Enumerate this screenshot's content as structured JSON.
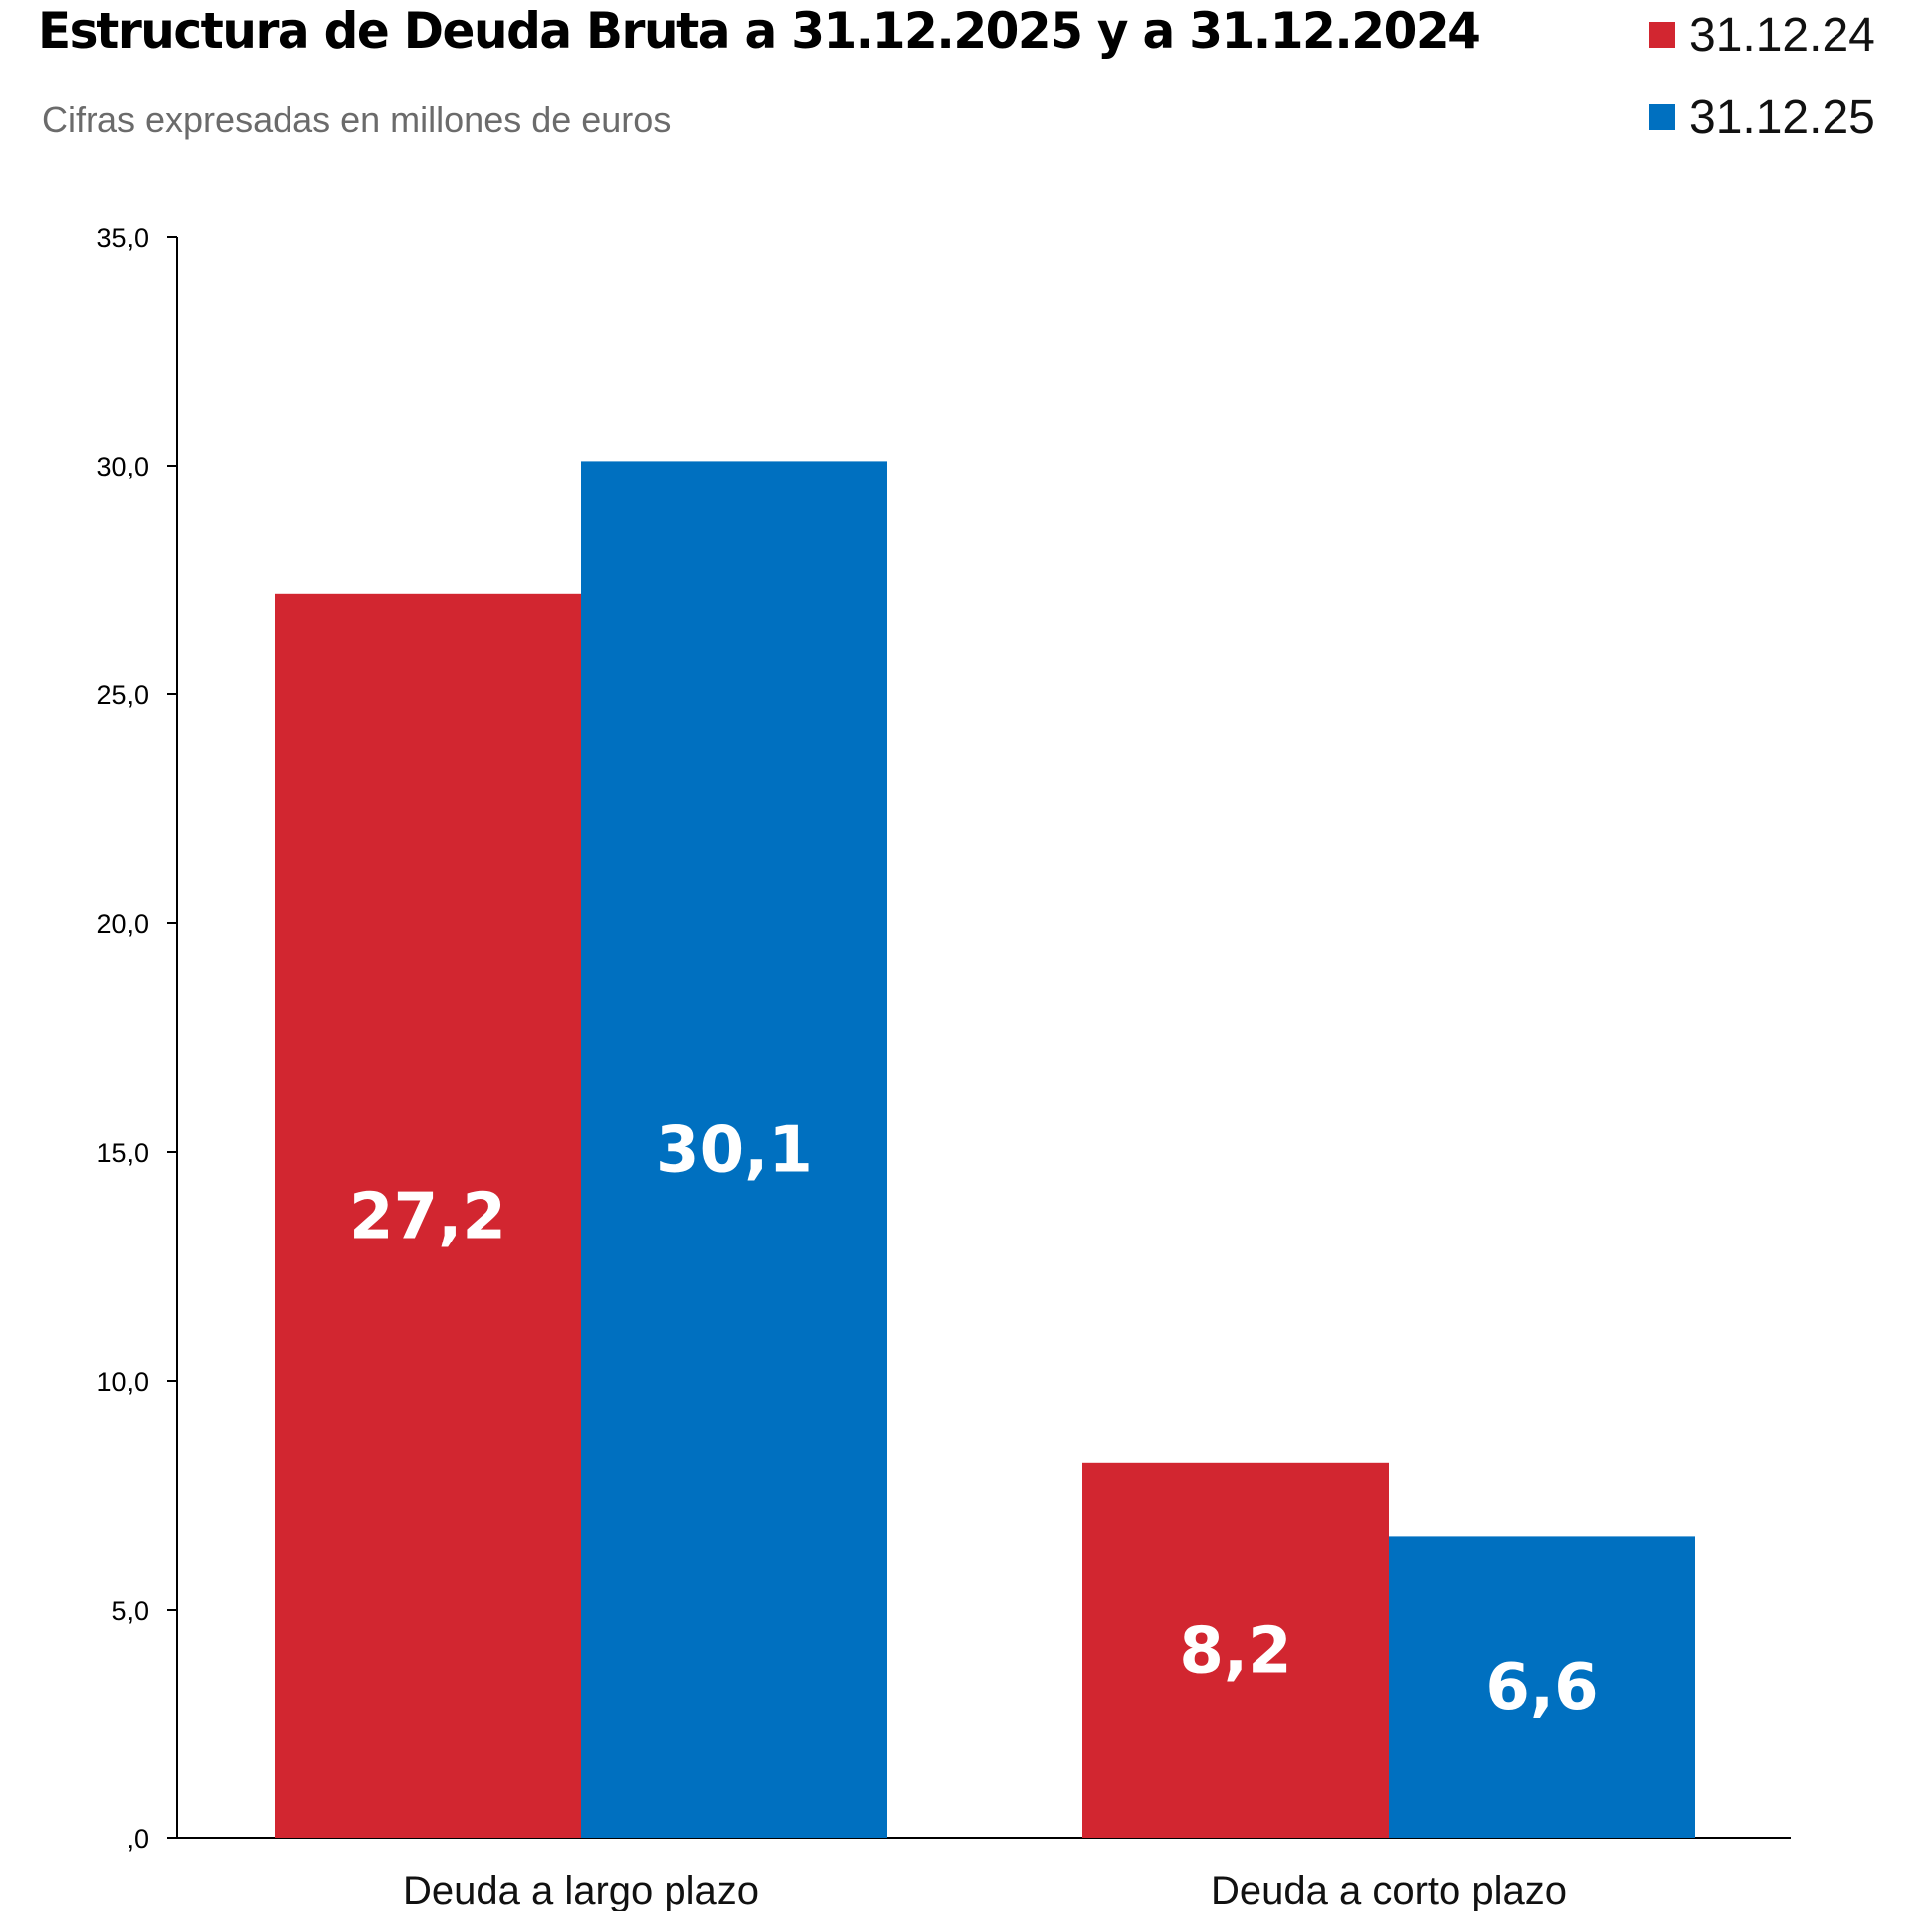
{
  "chart_data": {
    "type": "bar",
    "title": "Estructura de Deuda Bruta a 31.12.2025  y a 31.12.2024",
    "subtitle": "Cifras expresadas en millones de euros",
    "categories": [
      "Deuda a largo plazo",
      "Deuda a corto plazo"
    ],
    "series": [
      {
        "name": "31.12.24",
        "color": "#d22630",
        "values": [
          27.2,
          8.2
        ],
        "labels": [
          "27,2",
          "8,2"
        ]
      },
      {
        "name": "31.12.25",
        "color": "#0070c0",
        "values": [
          30.1,
          6.6
        ],
        "labels": [
          "30,1",
          "6,6"
        ]
      }
    ],
    "ylim": [
      0,
      35
    ],
    "yticks": [
      0,
      5,
      10,
      15,
      20,
      25,
      30,
      35
    ],
    "ytick_labels": [
      ",0",
      "5,0",
      "10,0",
      "15,0",
      "20,0",
      "25,0",
      "30,0",
      "35,0"
    ],
    "legend_position": "top-right",
    "grid": false,
    "xlabel": "",
    "ylabel": ""
  }
}
